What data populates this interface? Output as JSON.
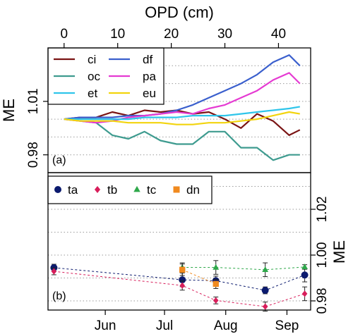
{
  "chart_data": [
    {
      "type": "line",
      "panel_label": "(a)",
      "xlabel": "OPD (cm)",
      "ylabel": "ME",
      "xlim": [
        -3,
        46
      ],
      "ylim": [
        0.97,
        1.04
      ],
      "xticks": [
        0,
        10,
        20,
        30,
        40
      ],
      "yticks": [
        0.98,
        1.01
      ],
      "ygrid": [
        0.98,
        0.99,
        1.0,
        1.01,
        1.02,
        1.03
      ],
      "grid": "horizontal dotted",
      "legend_position": "top-left",
      "x": [
        0,
        3,
        6,
        9,
        12,
        15,
        18,
        21,
        24,
        27,
        30,
        33,
        36,
        39,
        42,
        44
      ],
      "series": [
        {
          "name": "ci",
          "color": "#7a1414",
          "values": [
            1.0,
            1.001,
            1.001,
            1.004,
            1.002,
            1.005,
            1.004,
            1.005,
            1.003,
            1.004,
            1.0,
            0.995,
            1.003,
            0.999,
            0.991,
            0.994
          ]
        },
        {
          "name": "df",
          "color": "#3a5fcd",
          "values": [
            1.0,
            1.001,
            1.001,
            1.001,
            1.002,
            1.002,
            1.003,
            1.005,
            1.008,
            1.012,
            1.016,
            1.02,
            1.025,
            1.032,
            1.036,
            1.03
          ]
        },
        {
          "name": "oc",
          "color": "#3e9b8f",
          "values": [
            1.0,
            0.999,
            0.998,
            0.991,
            0.989,
            0.993,
            0.988,
            0.986,
            0.986,
            0.993,
            0.993,
            0.984,
            0.984,
            0.977,
            0.98,
            0.98
          ]
        },
        {
          "name": "pa",
          "color": "#e53ad2",
          "values": [
            1.0,
            0.999,
            0.998,
            0.999,
            1.001,
            1.002,
            1.003,
            1.004,
            1.003,
            1.006,
            1.008,
            1.012,
            1.016,
            1.022,
            1.026,
            1.02
          ]
        },
        {
          "name": "et",
          "color": "#2fc5ea",
          "values": [
            1.0,
            1.0,
            1.0,
            1.0,
            1.0,
            1.001,
            1.001,
            1.001,
            1.002,
            1.002,
            1.002,
            1.003,
            1.004,
            1.005,
            1.006,
            1.007
          ]
        },
        {
          "name": "eu",
          "color": "#f2d40e",
          "values": [
            1.0,
            0.999,
            0.999,
            0.999,
            0.998,
            0.998,
            0.998,
            0.997,
            0.997,
            0.998,
            0.998,
            0.999,
            1.0,
            1.002,
            1.004,
            1.003
          ]
        }
      ]
    },
    {
      "type": "scatter",
      "panel_label": "(b)",
      "xlabel": "",
      "ylabel": "ME",
      "xlim": [
        "2017-05-03",
        "2017-09-13"
      ],
      "ylim": [
        0.976,
        1.036
      ],
      "yticks": [
        0.98,
        1.0,
        1.02
      ],
      "ygrid": [
        0.98,
        0.99,
        1.0,
        1.01,
        1.02,
        1.03
      ],
      "xticks": [
        {
          "label": "Jun",
          "date": "2017-06-01"
        },
        {
          "label": "Jul",
          "date": "2017-07-01"
        },
        {
          "label": "Aug",
          "date": "2017-08-01"
        },
        {
          "label": "Sep",
          "date": "2017-09-01"
        }
      ],
      "grid": "horizontal dotted",
      "legend_position": "top",
      "series": [
        {
          "name": "ta",
          "marker": "circle",
          "color": "#0b1a6e",
          "points": [
            {
              "date": "2017-05-06",
              "y": 0.9945,
              "err": 0.0015
            },
            {
              "date": "2017-07-10",
              "y": 0.9892,
              "err": 0.003
            },
            {
              "date": "2017-07-27",
              "y": 0.9888,
              "err": 0.002
            },
            {
              "date": "2017-08-21",
              "y": 0.9846,
              "err": 0.0015
            },
            {
              "date": "2017-09-10",
              "y": 0.9913,
              "err": 0.003
            }
          ]
        },
        {
          "name": "tb",
          "marker": "diamond",
          "color": "#d81e5b",
          "points": [
            {
              "date": "2017-05-06",
              "y": 0.9929,
              "err": 0.0015
            },
            {
              "date": "2017-07-10",
              "y": 0.9867,
              "err": 0.002
            },
            {
              "date": "2017-07-27",
              "y": 0.9802,
              "err": 0.0015
            },
            {
              "date": "2017-08-21",
              "y": 0.9775,
              "err": 0.002
            },
            {
              "date": "2017-09-10",
              "y": 0.9831,
              "err": 0.003
            }
          ]
        },
        {
          "name": "tc",
          "marker": "triangle",
          "color": "#2ea84a",
          "points": [
            {
              "date": "2017-07-10",
              "y": 0.9946,
              "err": 0.002
            },
            {
              "date": "2017-07-27",
              "y": 0.9946,
              "err": 0.003
            },
            {
              "date": "2017-08-21",
              "y": 0.9936,
              "err": 0.003
            },
            {
              "date": "2017-09-10",
              "y": 0.9948,
              "err": 0.001
            }
          ]
        },
        {
          "name": "dn",
          "marker": "square",
          "color": "#f08a1f",
          "points": [
            {
              "date": "2017-07-10",
              "y": 0.9936,
              "err": 0.0025
            },
            {
              "date": "2017-07-27",
              "y": 0.9874,
              "err": 0.002
            }
          ]
        }
      ]
    }
  ]
}
